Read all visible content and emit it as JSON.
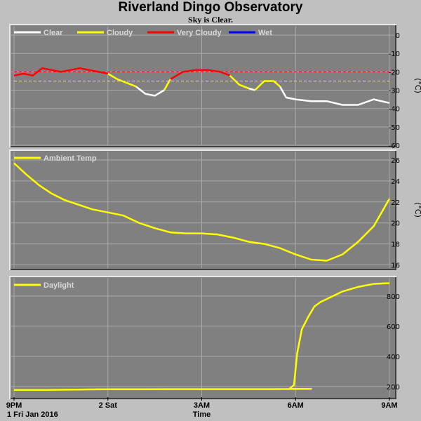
{
  "title": "Riverland Dingo Observatory",
  "subtitle": "Sky is Clear.",
  "x_axis": {
    "label": "Time",
    "date_label": "1 Fri Jan 2016",
    "ticks": [
      "9PM",
      "2 Sat",
      "3AM",
      "6AM",
      "9AM"
    ],
    "range_hours": [
      0,
      12
    ]
  },
  "colors": {
    "panel_bg": "#808080",
    "page_bg": "#c0c0c0",
    "clear": "#ffffff",
    "cloudy": "#ffff00",
    "very_cloudy": "#ff0000",
    "wet": "#0000ff",
    "ambient": "#ffff00",
    "daylight": "#ffff00",
    "threshold_red": "#ff0000",
    "threshold_yellow": "#ffff00"
  },
  "chart_data": [
    {
      "type": "line",
      "unit": "(°C)",
      "legend": [
        {
          "name": "Clear",
          "color": "#ffffff"
        },
        {
          "name": "Cloudy",
          "color": "#ffff00"
        },
        {
          "name": "Very Cloudy",
          "color": "#ff0000"
        },
        {
          "name": "Wet",
          "color": "#0000ff"
        }
      ],
      "ylim": [
        -60,
        5
      ],
      "yticks": [
        0,
        -10,
        -20,
        -30,
        -40,
        -50,
        -60
      ],
      "thresholds": [
        {
          "value": -20,
          "color": "#ff0000"
        },
        {
          "value": -25,
          "color": "#ffff00"
        }
      ],
      "series": [
        {
          "state": "very_cloudy",
          "x": [
            0,
            0.3,
            0.6,
            0.9,
            1.2,
            1.5,
            1.8,
            2.1,
            2.4,
            2.7,
            3.0
          ],
          "y": [
            -22,
            -21,
            -22,
            -18,
            -19,
            -20,
            -19,
            -18,
            -19,
            -20,
            -21
          ]
        },
        {
          "state": "cloudy",
          "x": [
            3.0,
            3.3,
            3.6,
            3.9
          ],
          "y": [
            -21,
            -24,
            -26,
            -28
          ]
        },
        {
          "state": "clear",
          "x": [
            3.9,
            4.2,
            4.5,
            4.8
          ],
          "y": [
            -28,
            -32,
            -33,
            -30
          ]
        },
        {
          "state": "cloudy",
          "x": [
            4.8,
            5.0
          ],
          "y": [
            -30,
            -24
          ]
        },
        {
          "state": "very_cloudy",
          "x": [
            5.0,
            5.4,
            5.8,
            6.2,
            6.6,
            6.9
          ],
          "y": [
            -24,
            -20,
            -19,
            -19,
            -20,
            -22
          ]
        },
        {
          "state": "cloudy",
          "x": [
            6.9,
            7.2,
            7.5
          ],
          "y": [
            -22,
            -27,
            -29
          ]
        },
        {
          "state": "clear",
          "x": [
            7.5,
            7.7
          ],
          "y": [
            -29,
            -30
          ]
        },
        {
          "state": "cloudy",
          "x": [
            7.7,
            8.0,
            8.3,
            8.5
          ],
          "y": [
            -30,
            -25,
            -25,
            -28
          ]
        },
        {
          "state": "clear",
          "x": [
            8.5,
            8.7,
            9.0,
            9.5,
            10.0,
            10.5,
            11.0,
            11.5,
            12.0
          ],
          "y": [
            -28,
            -34,
            -35,
            -36,
            -36,
            -38,
            -38,
            -35,
            -37
          ]
        }
      ]
    },
    {
      "type": "line",
      "unit": "(°C)",
      "legend": [
        {
          "name": "Ambient Temp",
          "color": "#ffff00"
        }
      ],
      "ylim": [
        15.7,
        26.8
      ],
      "yticks": [
        26,
        24,
        22,
        20,
        18,
        16
      ],
      "series": [
        {
          "name": "Ambient Temp",
          "x": [
            0,
            0.4,
            0.8,
            1.2,
            1.6,
            2,
            2.5,
            3,
            3.5,
            4,
            4.5,
            5,
            5.5,
            6,
            6.5,
            7,
            7.5,
            8,
            8.5,
            9,
            9.5,
            10,
            10.5,
            11,
            11.5,
            12
          ],
          "y": [
            25.7,
            24.6,
            23.6,
            22.8,
            22.2,
            21.8,
            21.3,
            21.0,
            20.7,
            20.0,
            19.5,
            19.1,
            19.0,
            19.0,
            18.9,
            18.6,
            18.2,
            18.0,
            17.6,
            17.0,
            16.5,
            16.4,
            17.0,
            18.2,
            19.7,
            22.3
          ]
        }
      ]
    },
    {
      "type": "line",
      "unit": "",
      "legend": [
        {
          "name": "Daylight",
          "color": "#ffff00"
        }
      ],
      "ylim": [
        130,
        920
      ],
      "yticks": [
        800,
        600,
        400,
        200
      ],
      "series": [
        {
          "name": "Daylight",
          "x": [
            0,
            1,
            2,
            3,
            4,
            5,
            6,
            7,
            8,
            9,
            9.5,
            8.8,
            8.95,
            9.05,
            9.2,
            9.4,
            9.6,
            9.8,
            10,
            10.5,
            11,
            11.5,
            12
          ],
          "y": [
            178,
            178,
            180,
            182,
            182,
            183,
            183,
            183,
            183,
            184,
            185,
            185,
            210,
            420,
            580,
            660,
            730,
            760,
            780,
            830,
            860,
            880,
            885
          ]
        }
      ]
    }
  ]
}
